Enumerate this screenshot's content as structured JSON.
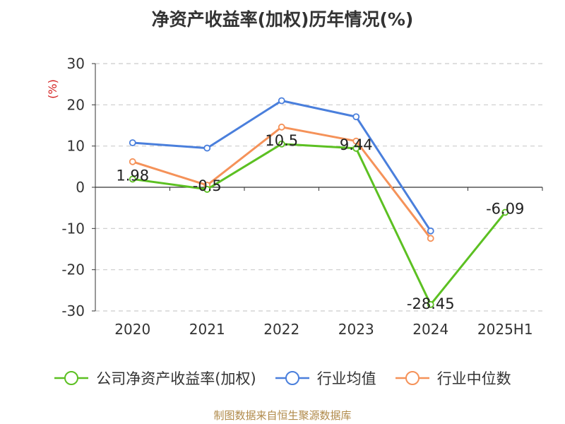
{
  "title": "净资产收益率(加权)历年情况(%)",
  "source": "制图数据来自恒生聚源数据库",
  "chart_data": {
    "type": "line",
    "title": "净资产收益率(加权)历年情况(%)",
    "ylabel": "(%)",
    "xlabel": "",
    "categories": [
      "2020",
      "2021",
      "2022",
      "2023",
      "2024",
      "2025H1"
    ],
    "ylim": [
      -30,
      30
    ],
    "yticks": [
      30,
      20,
      10,
      0,
      -10,
      -20,
      -30
    ],
    "grid": true,
    "legend_position": "bottom",
    "series": [
      {
        "name": "公司净资产收益率(加权)",
        "color": "#5cc022",
        "values": [
          1.98,
          -0.5,
          10.5,
          9.44,
          -28.45,
          -6.09
        ],
        "labels": [
          "1.98",
          "-0.5",
          "10.5",
          "9.44",
          "-28.45",
          "-6.09"
        ]
      },
      {
        "name": "行业均值",
        "color": "#4a7fdc",
        "values": [
          10.8,
          9.5,
          21.0,
          17.1,
          -10.6,
          null
        ]
      },
      {
        "name": "行业中位数",
        "color": "#f59259",
        "values": [
          6.2,
          0.5,
          14.6,
          11.2,
          -12.4,
          null
        ]
      }
    ]
  }
}
